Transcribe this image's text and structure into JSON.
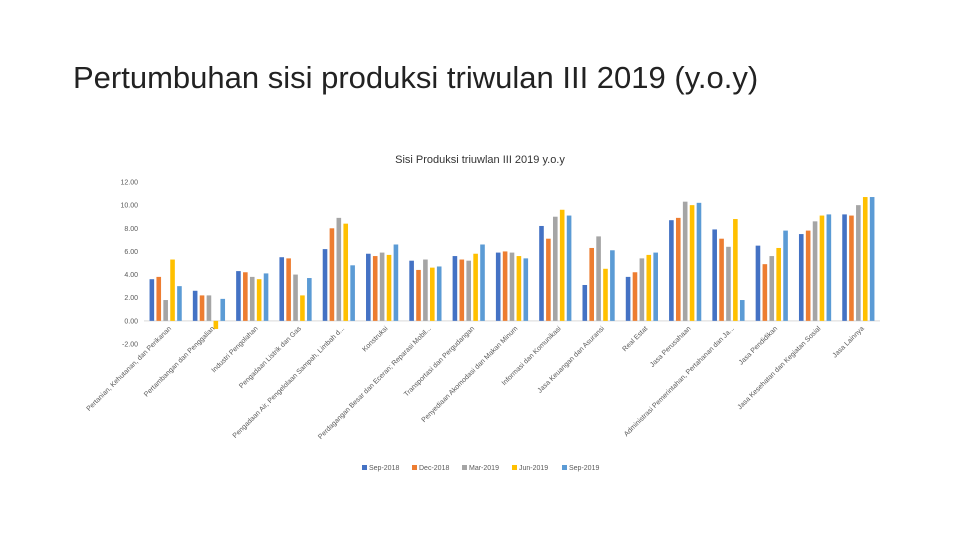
{
  "slide": {
    "title": "Pertumbuhan sisi produksi triwulan III 2019 (y.o.y)"
  },
  "chart_data": {
    "type": "bar",
    "title": "Sisi Produksi triuwlan III 2019 y.o.y",
    "ylim": [
      -2,
      12
    ],
    "yticks": [
      "-2.00",
      "0.00",
      "2.00",
      "4.00",
      "6.00",
      "8.00",
      "10.00",
      "12.00"
    ],
    "grid": false,
    "legend_position": "bottom",
    "categories": [
      "Pertanian, Kehutanan, dan Perikanan",
      "Pertambangan dan Penggalian",
      "Industri Pengolahan",
      "Pengadaan Listrik dan Gas",
      "Pengadaan Air, Pengelolaan Sampah, Limbah d...",
      "Konstruksi",
      "Perdagangan Besar dan Eceran; Reparasi Mobil...",
      "Transportasi dan Pergudangan",
      "Penyediaan Akomodasi dan Makan Minum",
      "Informasi dan Komunikasi",
      "Jasa Keuangan dan Asuransi",
      "Real Estat",
      "Jasa Perusahaan",
      "Administrasi Pemerintahan, Pertahanan dan Ja...",
      "Jasa Pendidikan",
      "Jasa Kesehatan dan Kegiatan Sosial",
      "Jasa Lainnya"
    ],
    "series": [
      {
        "name": "Sep-2018",
        "color": "#4472C4",
        "values": [
          3.6,
          2.6,
          4.3,
          5.5,
          6.2,
          5.8,
          5.2,
          5.6,
          5.9,
          8.2,
          3.1,
          3.8,
          8.7,
          7.9,
          6.5,
          7.5,
          9.2
        ]
      },
      {
        "name": "Dec-2018",
        "color": "#ED7D31",
        "values": [
          3.8,
          2.2,
          4.2,
          5.4,
          8.0,
          5.6,
          4.4,
          5.3,
          6.0,
          7.1,
          6.3,
          4.2,
          8.9,
          7.1,
          4.9,
          7.8,
          9.1
        ]
      },
      {
        "name": "Mar-2019",
        "color": "#A5A5A5",
        "values": [
          1.8,
          2.2,
          3.8,
          4.0,
          8.9,
          5.9,
          5.3,
          5.2,
          5.9,
          9.0,
          7.3,
          5.4,
          10.3,
          6.4,
          5.6,
          8.6,
          10.0
        ]
      },
      {
        "name": "Jun-2019",
        "color": "#FFC000",
        "values": [
          5.3,
          -0.7,
          3.6,
          2.2,
          8.4,
          5.7,
          4.6,
          5.8,
          5.6,
          9.6,
          4.5,
          5.7,
          10.0,
          8.8,
          6.3,
          9.1,
          10.7
        ]
      },
      {
        "name": "Sep-2019",
        "color": "#5B9BD5",
        "values": [
          3.0,
          1.9,
          4.1,
          3.7,
          4.8,
          6.6,
          4.7,
          6.6,
          5.4,
          9.1,
          6.1,
          5.9,
          10.2,
          1.8,
          7.8,
          9.2,
          10.7
        ]
      }
    ]
  }
}
